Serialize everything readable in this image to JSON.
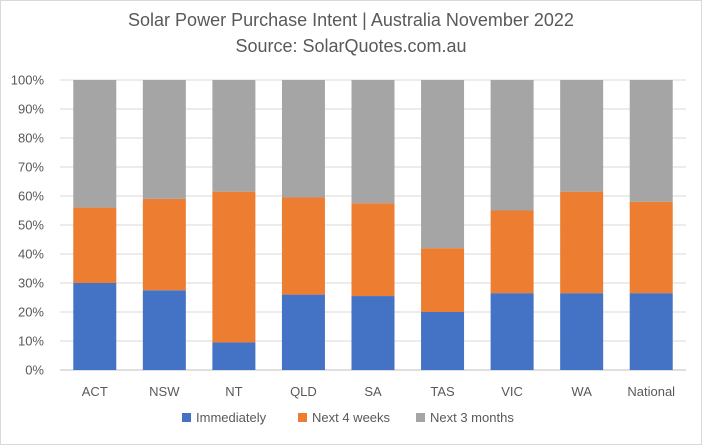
{
  "chart_data": {
    "type": "bar",
    "stacked": true,
    "title": "Solar Power Purchase Intent | Australia November 2022",
    "subtitle": "Source: SolarQuotes.com.au",
    "categories": [
      "ACT",
      "NSW",
      "NT",
      "QLD",
      "SA",
      "TAS",
      "VIC",
      "WA",
      "National"
    ],
    "series": [
      {
        "name": "Immediately",
        "color": "#4472C4",
        "values": [
          30,
          27.5,
          9.5,
          26,
          25.5,
          20,
          26.5,
          26.5,
          26.5
        ]
      },
      {
        "name": "Next 4 weeks",
        "color": "#ED7D31",
        "values": [
          26,
          31.5,
          52,
          33.5,
          32,
          22,
          28.5,
          35,
          31.5
        ]
      },
      {
        "name": "Next 3 months",
        "color": "#A5A5A5",
        "values": [
          44,
          41,
          38.5,
          40.5,
          42.5,
          58,
          45,
          38.5,
          42
        ]
      }
    ],
    "yticks": [
      "0%",
      "10%",
      "20%",
      "30%",
      "40%",
      "50%",
      "60%",
      "70%",
      "80%",
      "90%",
      "100%"
    ],
    "ylim": [
      0,
      100
    ],
    "grid": true,
    "legend": "bottom"
  }
}
